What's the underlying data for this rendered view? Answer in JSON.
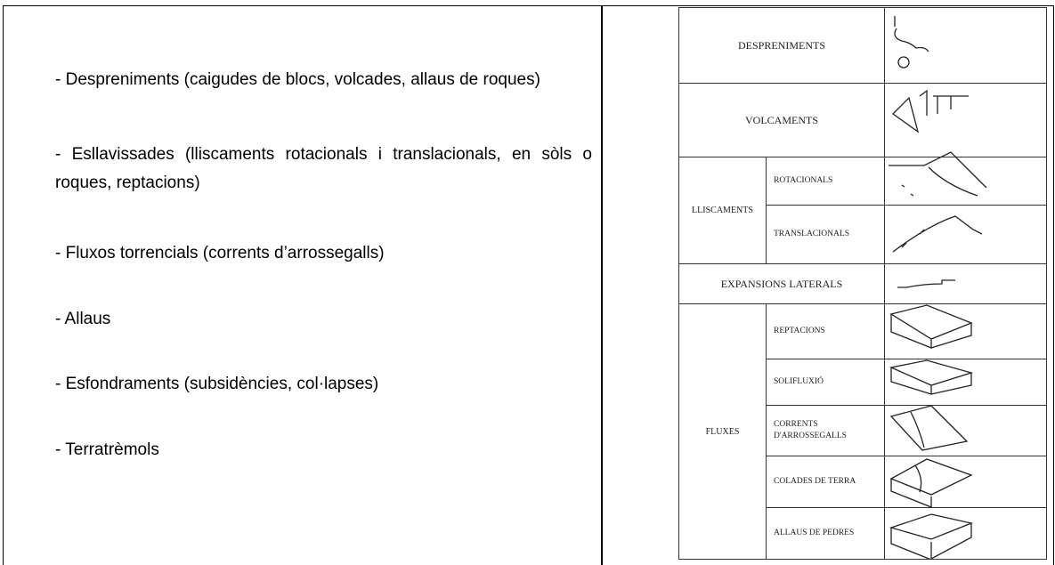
{
  "items": [
    "- Despreniments (caigudes de blocs, volcades, allaus de roques)",
    "- Esllavissades (lliscaments rotacionals i translacionals, en sòls o roques, reptacions)",
    "- Fluxos torrencials (corrents d’arrossegalls)",
    "- Allaus",
    "- Esfondraments (subsidències, col·lapses)",
    "- Terratrèmols"
  ],
  "classification": {
    "rows": [
      {
        "label": "DESPRENIMENTS"
      },
      {
        "label": "VOLCAMENTS"
      },
      {
        "label": "LLISCAMENTS",
        "subtypes": [
          "ROTACIONALS",
          "TRANSLACIONALS"
        ]
      },
      {
        "label": "EXPANSIONS LATERALS"
      },
      {
        "label": "FLUXES",
        "subtypes": [
          "REPTACIONS",
          "SOLIFLUXIÓ",
          "CORRENTS D'ARROSSEGALLS",
          "COLADES DE TERRA",
          "ALLAUS DE PEDRES"
        ]
      }
    ]
  }
}
